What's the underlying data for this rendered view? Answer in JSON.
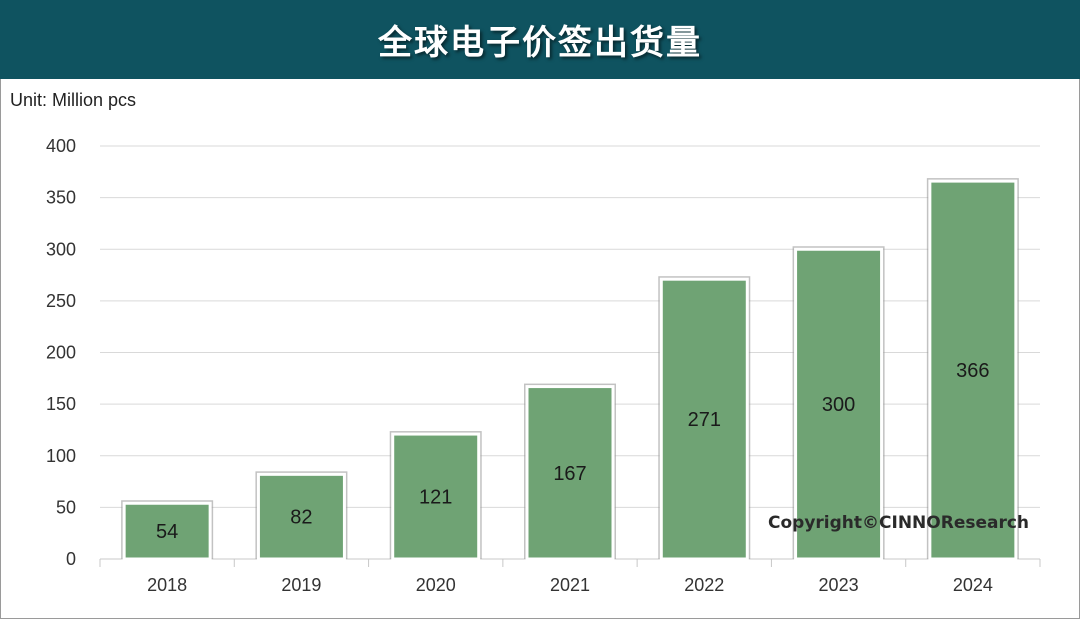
{
  "header": {
    "title": "全球电子价签出货量"
  },
  "unit_label": "Unit: Million pcs",
  "copyright": "Copyright©CINNOResearch",
  "colors": {
    "header_bg": "#0f5360",
    "bar_fill": "#6fa374",
    "grid": "#d9d9d9"
  },
  "chart_data": {
    "type": "bar",
    "title": "全球电子价签出货量",
    "xlabel": "",
    "ylabel": "Unit: Million pcs",
    "categories": [
      "2018",
      "2019",
      "2020",
      "2021",
      "2022",
      "2023",
      "2024"
    ],
    "values": [
      54,
      82,
      121,
      167,
      271,
      300,
      366
    ],
    "ylim": [
      0,
      400
    ],
    "yticks": [
      0,
      50,
      100,
      150,
      200,
      250,
      300,
      350,
      400
    ],
    "grid": true,
    "legend": "none"
  }
}
